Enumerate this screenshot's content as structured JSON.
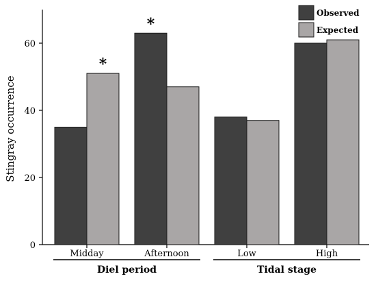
{
  "chart_data": {
    "type": "bar",
    "ylabel": "Stingray occurrence",
    "ylim": [
      0,
      70
    ],
    "yticks": [
      0,
      20,
      40,
      60
    ],
    "categories": [
      "Midday",
      "Afternoon",
      "Low",
      "High"
    ],
    "series": [
      {
        "name": "Observed",
        "color": "#404040",
        "values": [
          35,
          63,
          38,
          60
        ]
      },
      {
        "name": "Expected",
        "color": "#a9a6a6",
        "values": [
          51,
          47,
          37,
          61
        ]
      }
    ],
    "groups": [
      {
        "label": "Diel period",
        "categories": [
          "Midday",
          "Afternoon"
        ]
      },
      {
        "label": "Tidal stage",
        "categories": [
          "Low",
          "High"
        ]
      }
    ],
    "annotations": [
      {
        "text": "*",
        "category": "Midday"
      },
      {
        "text": "*",
        "category": "Afternoon"
      }
    ],
    "legend_position": "top-right",
    "grid": false
  }
}
